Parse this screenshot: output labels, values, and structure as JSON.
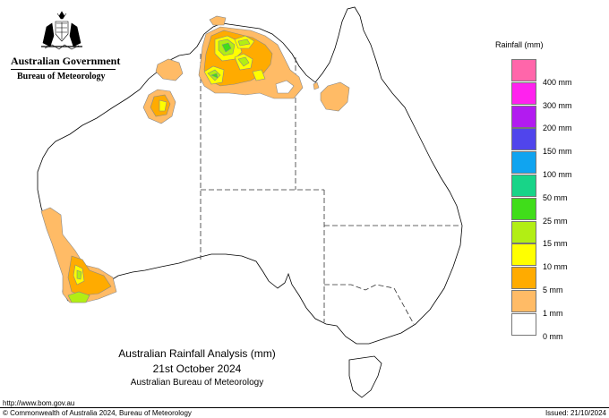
{
  "header": {
    "government": "Australian Government",
    "bureau": "Bureau of Meteorology"
  },
  "legend": {
    "title": "Rainfall (mm)",
    "items": [
      {
        "label": "",
        "color": "#ff66aa"
      },
      {
        "label": "400 mm",
        "color": "#ff22ee"
      },
      {
        "label": "300 mm",
        "color": "#b21bf0"
      },
      {
        "label": "200 mm",
        "color": "#5045ec"
      },
      {
        "label": "150 mm",
        "color": "#10a4f0"
      },
      {
        "label": "100 mm",
        "color": "#18d488"
      },
      {
        "label": "50 mm",
        "color": "#40dd1a"
      },
      {
        "label": "25 mm",
        "color": "#b2ee14"
      },
      {
        "label": "15 mm",
        "color": "#ffff00"
      },
      {
        "label": "10 mm",
        "color": "#ffab00"
      },
      {
        "label": "5 mm",
        "color": "#ffbb66"
      },
      {
        "label": "1 mm",
        "color": "#ffffff"
      },
      {
        "label": "0 mm",
        "color": ""
      }
    ]
  },
  "caption": {
    "title": "Australian Rainfall Analysis (mm)",
    "date": "21st October 2024",
    "agency": "Australian Bureau of Meteorology"
  },
  "footer": {
    "url": "http://www.bom.gov.au",
    "copyright": "© Commonwealth of Australia 2024, Bureau of Meteorology",
    "issued": "Issued: 21/10/2024"
  }
}
